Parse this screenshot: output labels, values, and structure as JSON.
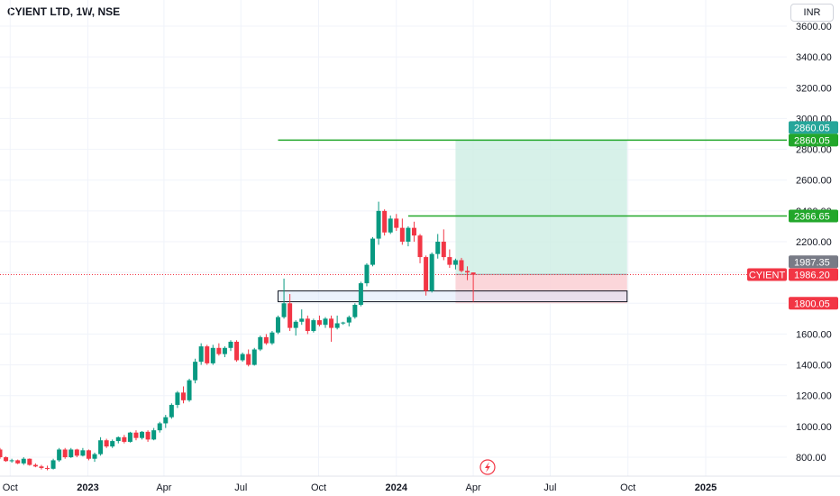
{
  "header": {
    "symbol_title": "CYIENT LTD, 1W, NSE",
    "currency_button": "INR"
  },
  "colors": {
    "up": "#089981",
    "down": "#f23645",
    "target_zone": "#cdeee3",
    "stop_zone": "#fbd2d6",
    "support_zone": "#dbe8f9",
    "level_line": "#22a72b",
    "price_line": "#f23645",
    "grid": "#f0f3fa",
    "text": "#131722"
  },
  "chart_data": {
    "type": "candlestick",
    "title": "CYIENT LTD, 1W, NSE",
    "ylim": [
      650,
      3680
    ],
    "y_ticks": [
      800,
      1000,
      1200,
      1400,
      1600,
      1800,
      2000,
      2200,
      2400,
      2600,
      2800,
      3000,
      3200,
      3400,
      3600
    ],
    "y_tick_labels": [
      "800.00",
      "1000.00",
      "1200.00",
      "1400.00",
      "1600.00",
      "1800.00",
      "2000.00",
      "2200.00",
      "2400.00",
      "2600.00",
      "2800.00",
      "3000.00",
      "3200.00",
      "3400.00",
      "3600.00"
    ],
    "xlim": [
      "2022-09-19",
      "2025-04-07"
    ],
    "x_ticks": [
      {
        "date": "2022-10-01",
        "label": "Oct"
      },
      {
        "date": "2023-01-01",
        "label": "2023"
      },
      {
        "date": "2023-04-01",
        "label": "Apr"
      },
      {
        "date": "2023-07-01",
        "label": "Jul"
      },
      {
        "date": "2023-10-01",
        "label": "Oct"
      },
      {
        "date": "2024-01-01",
        "label": "2024"
      },
      {
        "date": "2024-04-01",
        "label": "Apr"
      },
      {
        "date": "2024-07-01",
        "label": "Jul"
      },
      {
        "date": "2024-10-01",
        "label": "Oct"
      },
      {
        "date": "2025-01-01",
        "label": "2025"
      }
    ],
    "grid": true,
    "candles_ohlc": [
      [
        850,
        860,
        790,
        800
      ],
      [
        800,
        805,
        770,
        775
      ],
      [
        775,
        790,
        765,
        780
      ],
      [
        780,
        785,
        755,
        760
      ],
      [
        760,
        800,
        750,
        790
      ],
      [
        790,
        792,
        745,
        750
      ],
      [
        750,
        760,
        735,
        740
      ],
      [
        740,
        750,
        720,
        730
      ],
      [
        730,
        745,
        715,
        725
      ],
      [
        725,
        790,
        720,
        780
      ],
      [
        780,
        860,
        770,
        850
      ],
      [
        850,
        860,
        790,
        800
      ],
      [
        800,
        860,
        795,
        850
      ],
      [
        850,
        855,
        800,
        810
      ],
      [
        810,
        860,
        805,
        845
      ],
      [
        845,
        850,
        780,
        790
      ],
      [
        790,
        830,
        770,
        820
      ],
      [
        820,
        930,
        810,
        910
      ],
      [
        910,
        920,
        860,
        870
      ],
      [
        870,
        915,
        860,
        905
      ],
      [
        905,
        935,
        890,
        930
      ],
      [
        930,
        945,
        890,
        900
      ],
      [
        900,
        965,
        895,
        960
      ],
      [
        960,
        975,
        910,
        925
      ],
      [
        925,
        970,
        915,
        965
      ],
      [
        965,
        975,
        900,
        915
      ],
      [
        915,
        990,
        910,
        975
      ],
      [
        975,
        1030,
        960,
        1020
      ],
      [
        1020,
        1075,
        990,
        1060
      ],
      [
        1060,
        1150,
        1050,
        1140
      ],
      [
        1140,
        1230,
        1120,
        1220
      ],
      [
        1220,
        1260,
        1150,
        1170
      ],
      [
        1170,
        1310,
        1160,
        1300
      ],
      [
        1300,
        1440,
        1280,
        1420
      ],
      [
        1420,
        1540,
        1400,
        1520
      ],
      [
        1520,
        1530,
        1400,
        1410
      ],
      [
        1410,
        1530,
        1400,
        1510
      ],
      [
        1510,
        1540,
        1460,
        1470
      ],
      [
        1470,
        1520,
        1450,
        1510
      ],
      [
        1510,
        1560,
        1490,
        1550
      ],
      [
        1550,
        1560,
        1420,
        1430
      ],
      [
        1430,
        1480,
        1420,
        1470
      ],
      [
        1470,
        1500,
        1390,
        1400
      ],
      [
        1400,
        1510,
        1395,
        1500
      ],
      [
        1500,
        1590,
        1490,
        1580
      ],
      [
        1580,
        1600,
        1530,
        1540
      ],
      [
        1540,
        1620,
        1530,
        1610
      ],
      [
        1610,
        1720,
        1600,
        1710
      ],
      [
        1710,
        1960,
        1700,
        1800
      ],
      [
        1800,
        1860,
        1620,
        1640
      ],
      [
        1640,
        1690,
        1590,
        1680
      ],
      [
        1680,
        1760,
        1660,
        1700
      ],
      [
        1700,
        1720,
        1600,
        1620
      ],
      [
        1620,
        1700,
        1610,
        1690
      ],
      [
        1690,
        1720,
        1650,
        1660
      ],
      [
        1660,
        1710,
        1640,
        1700
      ],
      [
        1700,
        1720,
        1550,
        1640
      ],
      [
        1640,
        1720,
        1630,
        1670
      ],
      [
        1670,
        1680,
        1660,
        1675
      ],
      [
        1675,
        1720,
        1650,
        1710
      ],
      [
        1710,
        1800,
        1700,
        1790
      ],
      [
        1790,
        1940,
        1780,
        1930
      ],
      [
        1930,
        2060,
        1910,
        2050
      ],
      [
        2050,
        2230,
        2040,
        2220
      ],
      [
        2220,
        2460,
        2180,
        2400
      ],
      [
        2400,
        2410,
        2240,
        2260
      ],
      [
        2260,
        2370,
        2250,
        2350
      ],
      [
        2350,
        2380,
        2270,
        2290
      ],
      [
        2290,
        2350,
        2180,
        2200
      ],
      [
        2200,
        2300,
        2170,
        2290
      ],
      [
        2290,
        2330,
        2200,
        2240
      ],
      [
        2240,
        2250,
        2060,
        2100
      ],
      [
        2100,
        2110,
        1850,
        1880
      ],
      [
        1880,
        2130,
        1870,
        2120
      ],
      [
        2120,
        2250,
        2090,
        2200
      ],
      [
        2200,
        2280,
        2080,
        2100
      ],
      [
        2100,
        2150,
        2030,
        2050
      ],
      [
        2050,
        2090,
        2020,
        2080
      ],
      [
        2080,
        2095,
        2000,
        2010
      ],
      [
        2010,
        2040,
        1950,
        2000
      ],
      [
        2000,
        2000,
        1810,
        1986.2
      ]
    ],
    "position_tool": {
      "entry": 1987.35,
      "target": 2860.05,
      "stop": 1800.05,
      "target_label": "2860.05",
      "entry_label": "1987.35",
      "stop_label": "1800.05",
      "start_date": "2024-03-11",
      "end_date": "2024-09-30"
    },
    "horizontal_lines": [
      {
        "value": 2860.05,
        "start_date": "2023-08-14",
        "label": "2860.05"
      },
      {
        "value": 2366.65,
        "start_date": "2024-01-15",
        "label": "2366.65"
      }
    ],
    "support_box": {
      "top": 1880,
      "bottom": 1810,
      "start_date": "2023-08-14",
      "end_date": "2024-09-30"
    },
    "last_price": {
      "value": 1986.2,
      "symbol": "CYIENT",
      "label": "1986.20"
    }
  }
}
